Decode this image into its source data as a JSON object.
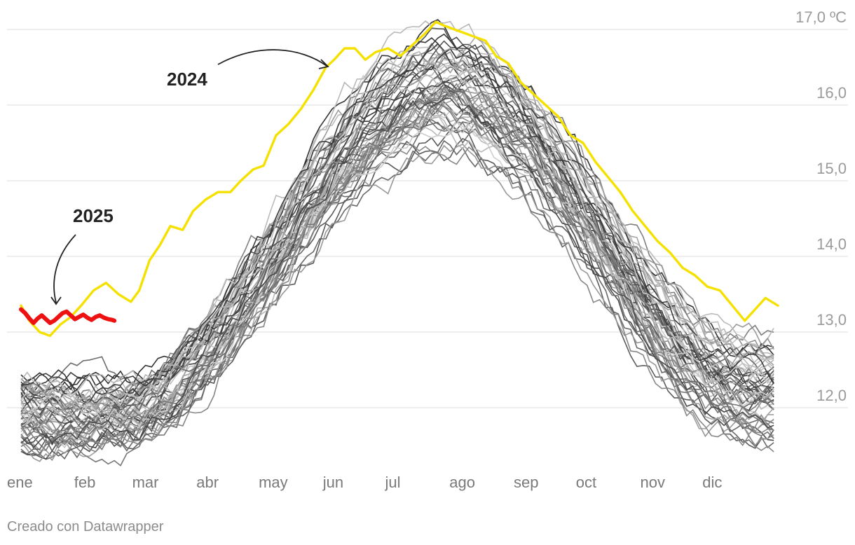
{
  "chart_data": {
    "type": "line",
    "title": "",
    "xlabel": "",
    "ylabel": "",
    "unit": "ºC",
    "ylim": [
      11.3,
      17.3
    ],
    "y_ticks": [
      {
        "value": 12,
        "label": "12,0"
      },
      {
        "value": 13,
        "label": "13,0"
      },
      {
        "value": 14,
        "label": "14,0"
      },
      {
        "value": 15,
        "label": "15,0"
      },
      {
        "value": 16,
        "label": "16,0"
      },
      {
        "value": 17,
        "label": "17,0 ºC"
      }
    ],
    "x_ticks": [
      {
        "day": 1,
        "label": "ene"
      },
      {
        "day": 32,
        "label": "feb"
      },
      {
        "day": 60,
        "label": "mar"
      },
      {
        "day": 91,
        "label": "abr"
      },
      {
        "day": 121,
        "label": "may"
      },
      {
        "day": 152,
        "label": "jun"
      },
      {
        "day": 182,
        "label": "jul"
      },
      {
        "day": 213,
        "label": "ago"
      },
      {
        "day": 244,
        "label": "sep"
      },
      {
        "day": 274,
        "label": "oct"
      },
      {
        "day": 305,
        "label": "nov"
      },
      {
        "day": 335,
        "label": "dic"
      }
    ],
    "grid": true,
    "background_series": {
      "description": "many earlier years, drawn in greys",
      "count": 60,
      "color_range": [
        "#333333",
        "#d2d2d2"
      ]
    },
    "series_2024": {
      "name": "2024",
      "color": "#f5e100",
      "points": [
        [
          1,
          13.35
        ],
        [
          5,
          13.15
        ],
        [
          10,
          13.0
        ],
        [
          15,
          12.95
        ],
        [
          20,
          13.1
        ],
        [
          25,
          13.2
        ],
        [
          30,
          13.35
        ],
        [
          36,
          13.55
        ],
        [
          42,
          13.65
        ],
        [
          48,
          13.5
        ],
        [
          54,
          13.4
        ],
        [
          58,
          13.55
        ],
        [
          63,
          13.95
        ],
        [
          68,
          14.15
        ],
        [
          73,
          14.4
        ],
        [
          79,
          14.35
        ],
        [
          84,
          14.6
        ],
        [
          90,
          14.75
        ],
        [
          96,
          14.85
        ],
        [
          102,
          14.85
        ],
        [
          107,
          15.0
        ],
        [
          113,
          15.15
        ],
        [
          118,
          15.2
        ],
        [
          124,
          15.6
        ],
        [
          130,
          15.75
        ],
        [
          136,
          15.95
        ],
        [
          142,
          16.2
        ],
        [
          148,
          16.5
        ],
        [
          152,
          16.6
        ],
        [
          157,
          16.75
        ],
        [
          162,
          16.75
        ],
        [
          167,
          16.6
        ],
        [
          172,
          16.7
        ],
        [
          178,
          16.75
        ],
        [
          184,
          16.65
        ],
        [
          190,
          16.8
        ],
        [
          196,
          16.95
        ],
        [
          201,
          17.1
        ],
        [
          205,
          17.05
        ],
        [
          210,
          17.0
        ],
        [
          215,
          16.95
        ],
        [
          220,
          16.9
        ],
        [
          225,
          16.85
        ],
        [
          230,
          16.65
        ],
        [
          236,
          16.55
        ],
        [
          242,
          16.3
        ],
        [
          248,
          16.15
        ],
        [
          254,
          16.0
        ],
        [
          260,
          15.85
        ],
        [
          266,
          15.6
        ],
        [
          272,
          15.5
        ],
        [
          278,
          15.25
        ],
        [
          284,
          15.05
        ],
        [
          290,
          14.85
        ],
        [
          296,
          14.6
        ],
        [
          302,
          14.4
        ],
        [
          308,
          14.2
        ],
        [
          314,
          14.05
        ],
        [
          320,
          13.85
        ],
        [
          326,
          13.75
        ],
        [
          332,
          13.6
        ],
        [
          338,
          13.55
        ],
        [
          344,
          13.35
        ],
        [
          350,
          13.15
        ],
        [
          355,
          13.3
        ],
        [
          360,
          13.45
        ],
        [
          366,
          13.35
        ]
      ]
    },
    "series_2025": {
      "name": "2025",
      "color": "#ee1111",
      "points": [
        [
          1,
          13.3
        ],
        [
          3,
          13.25
        ],
        [
          5,
          13.18
        ],
        [
          7,
          13.12
        ],
        [
          9,
          13.18
        ],
        [
          11,
          13.22
        ],
        [
          13,
          13.17
        ],
        [
          15,
          13.12
        ],
        [
          17,
          13.15
        ],
        [
          19,
          13.2
        ],
        [
          21,
          13.25
        ],
        [
          23,
          13.27
        ],
        [
          25,
          13.22
        ],
        [
          27,
          13.17
        ],
        [
          29,
          13.2
        ],
        [
          31,
          13.23
        ],
        [
          33,
          13.19
        ],
        [
          35,
          13.16
        ],
        [
          37,
          13.2
        ],
        [
          39,
          13.22
        ],
        [
          41,
          13.19
        ],
        [
          43,
          13.17
        ],
        [
          45,
          13.16
        ],
        [
          46,
          13.15
        ]
      ]
    },
    "annotations": [
      {
        "text": "2024",
        "target_series": "2024"
      },
      {
        "text": "2025",
        "target_series": "2025"
      }
    ]
  },
  "credit": "Creado con Datawrapper"
}
